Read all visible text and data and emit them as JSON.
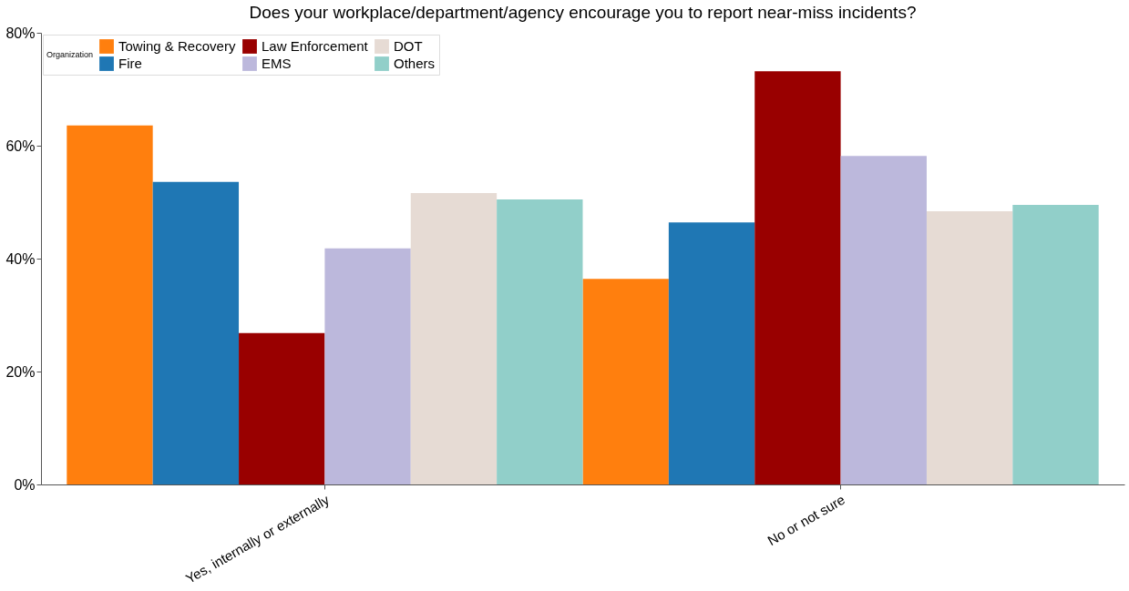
{
  "chart_data": {
    "type": "bar",
    "title": "Does your workplace/department/agency encourage you to report near-miss incidents?",
    "legend_title": "Organization",
    "categories": [
      "Yes, internally or externally",
      "No or not sure"
    ],
    "series": [
      {
        "name": "Towing & Recovery",
        "color": "#ff7f0e",
        "values": [
          63.6,
          36.4
        ]
      },
      {
        "name": "Fire",
        "color": "#1f77b4",
        "values": [
          53.6,
          46.4
        ]
      },
      {
        "name": "Law Enforcement",
        "color": "#990000",
        "values": [
          26.8,
          73.2
        ]
      },
      {
        "name": "EMS",
        "color": "#bcb8dc",
        "values": [
          41.8,
          58.2
        ]
      },
      {
        "name": "DOT",
        "color": "#e6dbd4",
        "values": [
          51.6,
          48.4
        ]
      },
      {
        "name": "Others",
        "color": "#91cfc9",
        "values": [
          50.5,
          49.5
        ]
      }
    ],
    "ylim": [
      0,
      80
    ],
    "yticks": [
      {
        "value": 0,
        "label": "0%"
      },
      {
        "value": 20,
        "label": "20%"
      },
      {
        "value": 40,
        "label": "40%"
      },
      {
        "value": 60,
        "label": "60%"
      },
      {
        "value": 80,
        "label": "80%"
      }
    ],
    "grid": false,
    "legend": "top left"
  }
}
